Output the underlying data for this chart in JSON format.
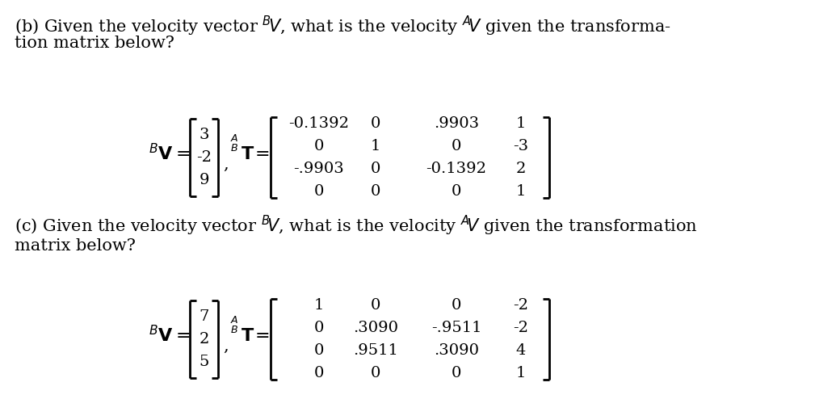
{
  "bg_color": "#ffffff",
  "text_color": "#000000",
  "part_b": {
    "line1": "(b) Given the velocity vector $^{B}\\!V$, what is the velocity $^{A}\\!V$ given the transforma-",
    "line2": "tion matrix below?",
    "bv_vector": [
      "3",
      "-2",
      "9"
    ],
    "at_matrix": [
      [
        "-0.1392",
        "0",
        ".9903",
        "1"
      ],
      [
        "0",
        "1",
        "0",
        "-3"
      ],
      [
        "-.9903",
        "0",
        "-0.1392",
        "2"
      ],
      [
        "0",
        "0",
        "0",
        "1"
      ]
    ]
  },
  "part_c": {
    "line1": "(c) Given the velocity vector $^{B}\\!V$, what is the velocity $^{A}\\!V$ given the transformation",
    "line2": "matrix below?",
    "bv_vector": [
      "7",
      "2",
      "5"
    ],
    "at_matrix": [
      [
        "1",
        "0",
        "0",
        "-2"
      ],
      [
        "0",
        ".3090",
        "-.9511",
        "-2"
      ],
      [
        "0",
        ".9511",
        ".3090",
        "4"
      ],
      [
        "0",
        "0",
        "0",
        "1"
      ]
    ]
  },
  "main_font": 15,
  "matrix_font": 14,
  "bold_font": 16
}
